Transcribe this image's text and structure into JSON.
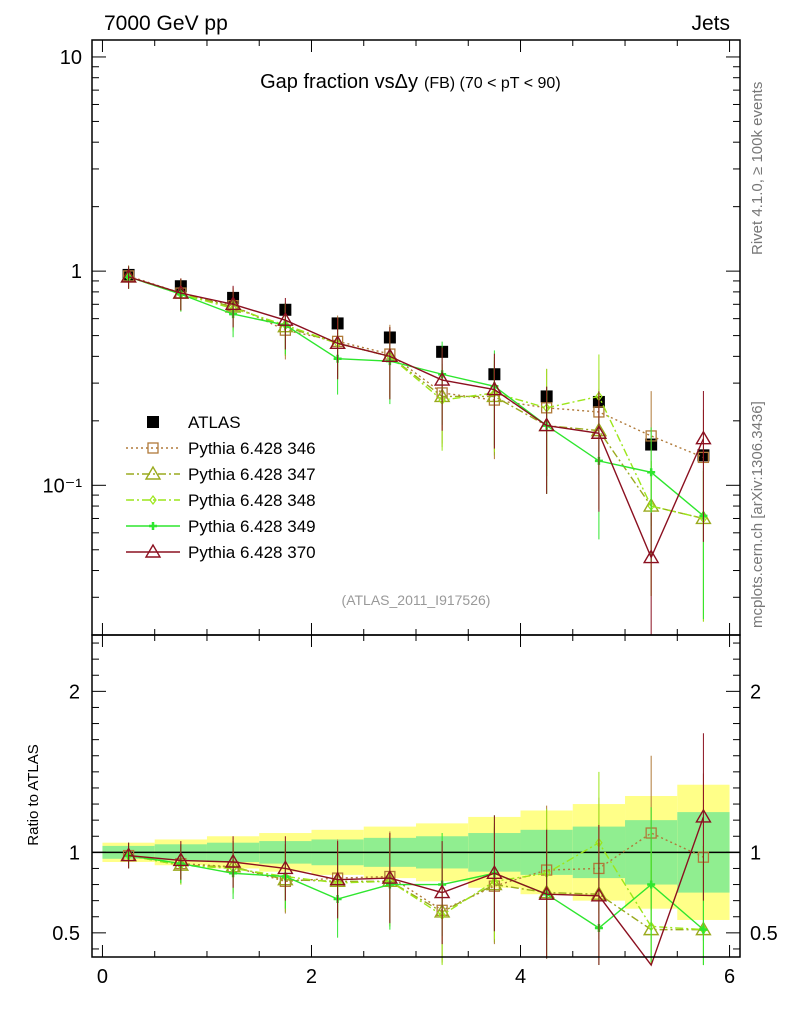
{
  "header": {
    "left": "7000 GeV pp",
    "right": "Jets"
  },
  "side_labels": {
    "top": "Rivet 4.1.0, ≥ 100k events",
    "bottom": "mcplots.cern.ch [arXiv:1306.3436]"
  },
  "colors": {
    "ATLAS": "#000000",
    "Pythia 6.428 346": "#b07a3a",
    "Pythia 6.428 347": "#9aaa1e",
    "Pythia 6.428 348": "#9ce61a",
    "Pythia 6.428 349": "#2ee62e",
    "Pythia 6.428 370": "#8b1020",
    "band_inner": "#90ee90",
    "band_outer": "#ffff88"
  },
  "chart_data": [
    {
      "type": "scatter",
      "title_main": "Gap fraction vsΔy",
      "title_sub": "(FB) (70 < pT <  90)",
      "watermark": "(ATLAS_2011_I917526)",
      "xlabel": "",
      "ylabel": "",
      "xlim": [
        -0.1,
        6.1
      ],
      "ylim": [
        0.02,
        12
      ],
      "yscale": "log",
      "x_ticks": [
        0,
        2,
        4,
        6
      ],
      "y_ticks": [
        {
          "value": 10,
          "label": "10"
        },
        {
          "value": 1,
          "label": "1"
        },
        {
          "value": 0.1,
          "label": "10⁻¹"
        }
      ],
      "legend_position": "center-left",
      "x": [
        0.25,
        0.75,
        1.25,
        1.75,
        2.25,
        2.75,
        3.25,
        3.75,
        4.25,
        4.75,
        5.25,
        5.75
      ],
      "series": [
        {
          "name": "ATLAS",
          "marker": "square",
          "line": "none",
          "values": [
            0.96,
            0.85,
            0.75,
            0.66,
            0.57,
            0.49,
            0.42,
            0.33,
            0.26,
            0.245,
            0.155,
            0.138
          ]
        },
        {
          "name": "Pythia 6.428 346",
          "marker": "open-square",
          "line": "dotted",
          "values": [
            0.95,
            0.79,
            0.69,
            0.53,
            0.47,
            0.41,
            0.27,
            0.25,
            0.23,
            0.22,
            0.17,
            0.135
          ]
        },
        {
          "name": "Pythia 6.428 347",
          "marker": "open-triangle",
          "line": "dashdot",
          "values": [
            0.94,
            0.79,
            0.68,
            0.55,
            0.46,
            0.4,
            0.26,
            0.26,
            0.19,
            0.18,
            0.08,
            0.07
          ]
        },
        {
          "name": "Pythia 6.428 348",
          "marker": "diamond",
          "line": "dashdot",
          "values": [
            0.94,
            0.78,
            0.67,
            0.56,
            0.46,
            0.4,
            0.25,
            0.27,
            0.23,
            0.26,
            0.08,
            0.07
          ]
        },
        {
          "name": "Pythia 6.428 349",
          "marker": "cross",
          "line": "solid",
          "values": [
            0.94,
            0.78,
            0.63,
            0.56,
            0.39,
            0.38,
            0.33,
            0.29,
            0.19,
            0.13,
            0.115,
            0.072
          ]
        },
        {
          "name": "Pythia 6.428 370",
          "marker": "open-triangle",
          "line": "solid",
          "values": [
            0.94,
            0.79,
            0.7,
            0.59,
            0.46,
            0.4,
            0.31,
            0.28,
            0.19,
            0.175,
            0.046,
            0.165
          ]
        }
      ]
    },
    {
      "type": "line",
      "ylabel": "Ratio to ATLAS",
      "xlim": [
        -0.1,
        6.1
      ],
      "ylim": [
        0.35,
        2.35
      ],
      "x_ticks": [
        0,
        2,
        4,
        6
      ],
      "y_ticks": [
        0.5,
        1,
        2
      ],
      "x": [
        0.25,
        0.75,
        1.25,
        1.75,
        2.25,
        2.75,
        3.25,
        3.75,
        4.25,
        4.75,
        5.25,
        5.75
      ],
      "band_inner": [
        0.04,
        0.05,
        0.06,
        0.07,
        0.08,
        0.09,
        0.1,
        0.12,
        0.14,
        0.16,
        0.2,
        0.25
      ],
      "band_outer": [
        0.06,
        0.08,
        0.1,
        0.12,
        0.14,
        0.16,
        0.18,
        0.22,
        0.26,
        0.3,
        0.35,
        0.42
      ],
      "series": [
        {
          "name": "Pythia 6.428 346",
          "values": [
            0.98,
            0.93,
            0.91,
            0.82,
            0.84,
            0.85,
            0.64,
            0.79,
            0.89,
            0.9,
            1.12,
            0.97
          ]
        },
        {
          "name": "Pythia 6.428 347",
          "values": [
            0.98,
            0.92,
            0.91,
            0.83,
            0.82,
            0.82,
            0.63,
            0.8,
            0.75,
            0.74,
            0.52,
            0.52
          ]
        },
        {
          "name": "Pythia 6.428 348",
          "values": [
            0.98,
            0.92,
            0.9,
            0.85,
            0.81,
            0.82,
            0.61,
            0.82,
            0.87,
            1.06,
            0.54,
            0.52
          ]
        },
        {
          "name": "Pythia 6.428 349",
          "values": [
            0.98,
            0.93,
            0.87,
            0.85,
            0.71,
            0.8,
            0.8,
            0.87,
            0.74,
            0.53,
            0.8,
            0.52
          ]
        },
        {
          "name": "Pythia 6.428 370",
          "values": [
            0.98,
            0.95,
            0.94,
            0.9,
            0.83,
            0.84,
            0.75,
            0.87,
            0.74,
            0.73,
            0.3,
            1.22
          ]
        }
      ]
    }
  ]
}
